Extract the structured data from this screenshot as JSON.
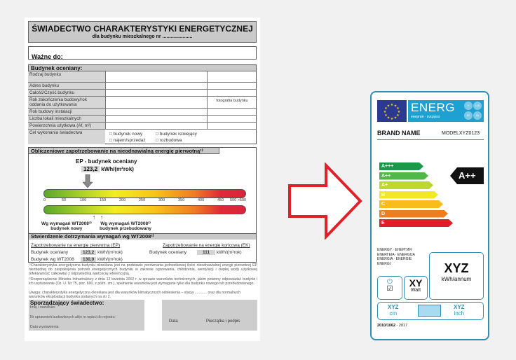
{
  "certificate": {
    "title": "ŚWIADECTWO  CHARAKTERYSTYKI ENERGETYCZNEJ",
    "subtitle": "dla budynku mieszkalnego nr ......................",
    "valid_until_label": "Ważne do:",
    "building_section": "Budynek oceniany:",
    "rows": [
      "Rodzaj budynku",
      "Adres budynku",
      "Całość/Część budynku",
      "Rok zakończenia budowy/rok oddania do użytkowania",
      "Rok budowy instalacji",
      "Liczba lokali mieszkalnych",
      "Powierzchnia użytkowa (Af, m²)"
    ],
    "photo_label": "fotografia budynku",
    "purpose_label": "Cel wykonania świadectwa",
    "purpose_options": [
      "budynek nowy",
      "budynek istniejący",
      "najem/sprzedaż",
      "rozbudowa"
    ],
    "demand_section": "Obliczeniowe zapotrzebowanie na nieodnawialną energię pierwotną¹⁾",
    "ep_label": "EP - budynek oceniany",
    "ep_value": "123,2",
    "ep_unit": "kWh/(m²rok)",
    "scale_ticks": [
      "0",
      "50",
      "100",
      "150",
      "200",
      "250",
      "300",
      "350",
      "400",
      "450",
      "500 >500"
    ],
    "marker_new": [
      "Wg wymagań WT2008²⁾",
      "budynek nowy"
    ],
    "marker_rebuilt": [
      "Wg wymagań WT2008²⁾",
      "budynek przebudowany"
    ],
    "compliance_section": "Stwierdzenie dotrzymania wymagań wg WT2008²⁾",
    "ep_heading": "Zapotrzebowanie na energię pierwotną (EP)",
    "ek_heading": "Zapotrzebowanie na energię końcową (EK)",
    "ep_rows": [
      {
        "label": "Budynek oceniany",
        "value": "123,2",
        "unit": "kWh/(m²rok)"
      },
      {
        "label": "Budynek wg WT2008",
        "value": "130,0",
        "unit": "kWh/(m²rok)"
      }
    ],
    "ek_row": {
      "label": "Budynek oceniany",
      "value": "111",
      "unit": "kWh/(m²rok)"
    },
    "footnote1": "¹⁾Charakterystyka energetyczna budynku określana jest na podstawie porównania jednostkowej ilości nieodnawialnej energii pierwotnej EP niezbędnej do zaspokojenia potrzeb energetycznych budynku w zakresie ogrzewania, chłodzenia, wentylacji i ciepłej wody użytkowej (efektywność całkowita) z odpowiednią wartością referencyjną.",
    "footnote2": "²⁾Rozporządzenie Ministra Infrastruktury z dnia 12 kwietnia 2002 r. w sprawie warunków technicznych, jakim powinny odpowiadać budynki i ich usytuowanie (Dz. U. Nr 75, poz. 690, z późn. zm.), spełnienie warunków jest wymagane tylko dla budynku nowego lub przebudowanego.",
    "note": "Uwaga: charakterystyka energetyczna określana jest dla warunków klimatycznych odniesienia – stacja ............ oraz dla normalnych warunków eksploatacji budynku podanych na str 2.",
    "prepared_by": "Sporządzający świadectwo:",
    "prepared_fields": [
      "Imię i nazwisko:",
      "Nr uprawnień budowlanych albo nr wpisu do rejestru:",
      "Data wystawienia:"
    ],
    "date_label": "Data",
    "stamp_label": "Pieczątka i podpis"
  },
  "arrow": {
    "icon": "right-arrow-outline-icon",
    "color": "#e0202a"
  },
  "energy_label": {
    "energ": "ENERG",
    "energ_sub": "енергия · ενεργεια",
    "lang_circles": [
      "Y",
      "IJA",
      "IE",
      "IA"
    ],
    "brand": "BRAND NAME",
    "model": "MODELXYZ0123",
    "classes": [
      {
        "c": "A+++",
        "color": "#1a9a46"
      },
      {
        "c": "A++",
        "color": "#50b848"
      },
      {
        "c": "A+",
        "color": "#bed630"
      },
      {
        "c": "B",
        "color": "#f2e82a"
      },
      {
        "c": "C",
        "color": "#f8bc1c"
      },
      {
        "c": "D",
        "color": "#ef7d22"
      },
      {
        "c": "E",
        "color": "#e21d2a"
      }
    ],
    "rating": "A++",
    "energy_words": [
      "ENERGY · ЕНЕРГИЯ",
      "ENERΓΕΙΑ · ENERGIJA",
      "ENERGIA · ENERGIE",
      "ENERGI"
    ],
    "consumption": "XYZ",
    "consumption_unit": "kWh/annum",
    "power": "XY",
    "power_unit": "Watt",
    "size_cm": "XYZ",
    "cm": "cm",
    "size_inch": "XYZ",
    "inch": "inch",
    "regulation": "2010/1062",
    "regulation_year": "- 2017",
    "accent": "#2f8fb3"
  }
}
